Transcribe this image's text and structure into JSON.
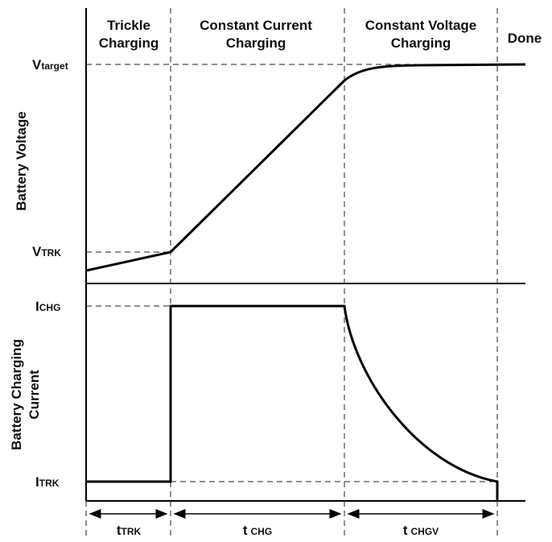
{
  "phases": [
    {
      "lines": [
        "Trickle",
        "Charging"
      ]
    },
    {
      "lines": [
        "Constant Current",
        "Charging"
      ]
    },
    {
      "lines": [
        "Constant Voltage",
        "Charging"
      ]
    },
    {
      "lines": [
        "Done"
      ]
    }
  ],
  "voltage_axis": {
    "title": "Battery Voltage",
    "levels": [
      {
        "main": "V",
        "sub": "target"
      },
      {
        "main": "V",
        "sub": "TRK"
      }
    ]
  },
  "current_axis": {
    "title": [
      "Battery Charging",
      "Current"
    ],
    "levels": [
      {
        "main": "I",
        "sub": "CHG"
      },
      {
        "main": "I",
        "sub": "TRK"
      }
    ]
  },
  "durations": [
    {
      "main": "t",
      "sub": "TRK"
    },
    {
      "main": "t",
      "sub": "CHG"
    },
    {
      "main": "t",
      "sub": "CHGV"
    }
  ]
}
